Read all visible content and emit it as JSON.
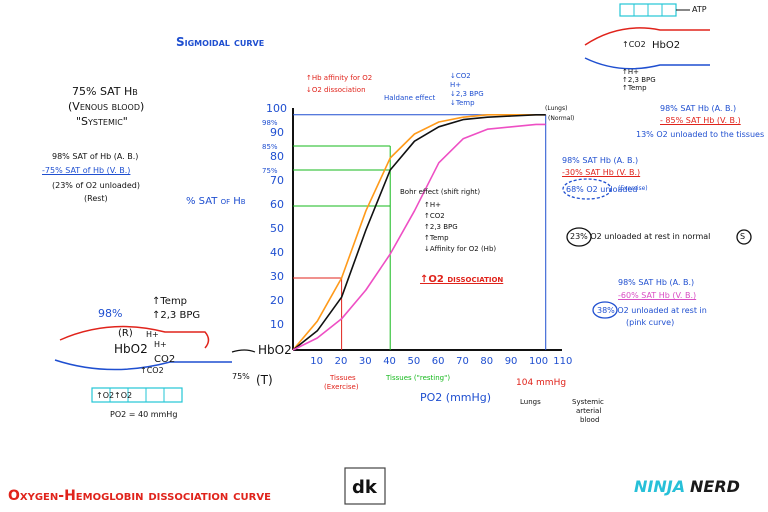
{
  "title": "Sigmoidal curve",
  "bottom_title": "Oxygen-Hemoglobin dissociation curve",
  "logo_dk": "dk",
  "logo_ninja": "NINJA",
  "logo_nerd": "NERD",
  "left_panel": {
    "venous_line1": "75% SAT Hb",
    "venous_line2": "(Venous blood)",
    "venous_line3": "\"Systemic\"",
    "ab_line": "98% SAT of Hb (A. B.)",
    "vb_line": "-75% SAT of Hb (V. B.)",
    "unloaded_line": "(23% of O2 unloaded)",
    "rest_line": "(Rest)",
    "ylabel": "% SAT of Hb"
  },
  "capillary_left": {
    "pct98": "98%",
    "temp": "↑Temp",
    "bpg": "↑2,3 BPG",
    "r": "(R)",
    "hbo2": "HbO2",
    "hplus1": "H+",
    "hplus2": "H+",
    "co2a": "CO2",
    "co2b": "↑CO2",
    "o2a": "↑O2",
    "o2b": "↑O2",
    "po2": "PO2 = 40 mmHg",
    "hbo2_right": "HbO2",
    "pct75": "75%",
    "t": "(T)"
  },
  "capillary_right": {
    "atp": "ATP",
    "co2": "↑CO2",
    "hbo2": "HbO2",
    "h": "↑H+",
    "bpg": "↑2,3 BPG",
    "temp": "↑Temp"
  },
  "annotations": {
    "hb_affinity": "↑Hb affinity for O2",
    "o2_dissociation_small": "↓O2 dissociation",
    "haldane": "Haldane effect",
    "haldane_items": [
      "↓CO2",
      "H+",
      "↓2,3 BPG",
      "↓Temp"
    ],
    "bohr_title": "Bohr effect (shift right)",
    "bohr_items": [
      "↑H+",
      "↑CO2",
      "↑2,3 BPG",
      "↑Temp",
      "↓Affinity for O2 (Hb)"
    ],
    "o2_dissociation_big": "↑O2 dissociation",
    "lungs": "(Lungs)",
    "normal": "(Normal)",
    "tissues_exercise1": "Tissues",
    "tissues_exercise2": "(Exercise)",
    "tissues_resting": "Tissues (\"resting\")",
    "mmhg104": "104 mmHg",
    "lungs_bottom": "Lungs",
    "systemic1": "Systemic",
    "systemic2": "arterial",
    "systemic3": "blood",
    "xlabel": "PO2 (mmHg)"
  },
  "right_panel": {
    "block1_l1": "98% SAT Hb (A. B.)",
    "block1_l2": "- 85% SAT Hb (V. B.)",
    "block1_l3": "13% O2 unloaded to the tissues",
    "block2_l1": "98% SAT Hb (A. B.)",
    "block2_l2": "-30% SAT Hb (V. B.)",
    "block2_l3": "68% O2 unloaded",
    "block2_l4": "(Exercise)",
    "block3": "23% O2 unloaded at rest in normal",
    "block3_s": "S",
    "block4_l1": "98% SAT Hb (A. B.)",
    "block4_l2": "-60% SAT Hb (V. B.)",
    "block4_l3": "38% O2 unloaded at rest in",
    "block4_l4": "(pink curve)"
  },
  "axes": {
    "x_ticks": [
      "10",
      "20",
      "30",
      "40",
      "50",
      "60",
      "70",
      "80",
      "90",
      "100",
      "110"
    ],
    "y_ticks": [
      "10",
      "20",
      "30",
      "40",
      "50",
      "60",
      "70",
      "80",
      "90",
      "100"
    ],
    "y_small": [
      "98%",
      "85%",
      "75%"
    ]
  },
  "chart_data": {
    "type": "line",
    "xlim": [
      0,
      110
    ],
    "ylim": [
      0,
      100
    ],
    "series": [
      {
        "color": "#ff9a1a",
        "x": [
          0,
          10,
          20,
          30,
          40,
          50,
          60,
          70,
          80,
          90,
          100,
          104
        ],
        "y": [
          0,
          12,
          30,
          58,
          80,
          90,
          95,
          97,
          98,
          98,
          98,
          98
        ]
      },
      {
        "color": "#111111",
        "x": [
          0,
          10,
          20,
          30,
          40,
          50,
          60,
          70,
          80,
          90,
          100,
          104
        ],
        "y": [
          0,
          8,
          22,
          50,
          75,
          87,
          93,
          96,
          97,
          97.5,
          98,
          98
        ]
      },
      {
        "color": "#ee4fc4",
        "x": [
          0,
          10,
          20,
          30,
          40,
          50,
          60,
          70,
          80,
          90,
          100,
          104
        ],
        "y": [
          0,
          5,
          13,
          25,
          40,
          58,
          78,
          88,
          92,
          93,
          94,
          94
        ]
      }
    ]
  }
}
